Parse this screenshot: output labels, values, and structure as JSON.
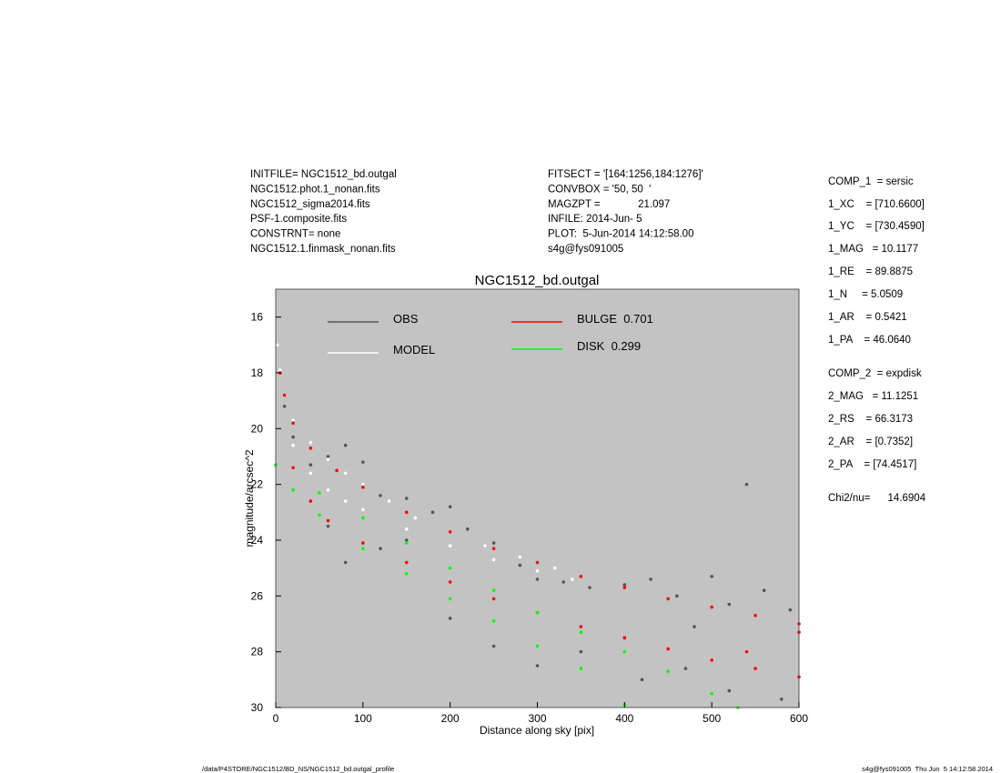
{
  "header": {
    "left": [
      "INITFILE= NGC1512_bd.outgal",
      "NGC1512.phot.1_nonan.fits",
      "NGC1512_sigma2014.fits",
      "PSF-1.composite.fits",
      "CONSTRNT= none",
      "NGC1512.1.finmask_nonan.fits"
    ],
    "middle": [
      "FITSECT = '[164:1256,184:1276]'",
      "CONVBOX = '50, 50  '",
      "MAGZPT =             21.097",
      "INFILE: 2014-Jun- 5",
      "PLOT:  5-Jun-2014 14:12:58.00",
      "s4g@fys091005"
    ],
    "params": [
      "COMP_1  = sersic",
      "1_XC    = [710.6600]",
      "1_YC    = [730.4590]",
      "1_MAG   = 10.1177",
      "1_RE    = 89.8875",
      "1_N     = 5.0509",
      "1_AR    = 0.5421",
      "1_PA    = 46.0640",
      "COMP_2  = expdisk",
      "2_MAG   = 11.1251",
      "2_RS    = 66.3173",
      "2_AR    = [0.7352]",
      "2_PA    = [74.4517]",
      "Chi2/nu=      14.6904"
    ]
  },
  "footer": {
    "left": "/data/P4STORE/NGC1512/BD_NS/NGC1512_bd.outgal_profile",
    "right": "s4g@fys091005  Thu Jun  5 14:12:58 2014"
  },
  "chart_data": {
    "type": "scatter",
    "title": "NGC1512_bd.outgal",
    "x_label": "Distance along sky [pix]",
    "y_label": "magnitude/arcsec^2",
    "xlim": [
      0,
      600
    ],
    "ylim": [
      30,
      15
    ],
    "xticks": [
      0,
      100,
      200,
      300,
      400,
      500,
      600
    ],
    "yticks": [
      16,
      18,
      20,
      22,
      24,
      26,
      28,
      30
    ],
    "background": "#c3c3c3",
    "series": [
      {
        "name": "OBS",
        "color": "#555555",
        "x": [
          2,
          5,
          10,
          20,
          40,
          60,
          80,
          100,
          120,
          150,
          180,
          200,
          220,
          250,
          280,
          300,
          330,
          360,
          400,
          430,
          460,
          500,
          520,
          540,
          560,
          590,
          80,
          150,
          200,
          250,
          300,
          350,
          420,
          470,
          520,
          580,
          60,
          120,
          400,
          480
        ],
        "values": [
          17.0,
          18.0,
          19.2,
          20.3,
          21.3,
          21.0,
          20.6,
          21.2,
          22.4,
          22.5,
          23.0,
          22.8,
          23.6,
          24.1,
          24.9,
          25.4,
          25.5,
          25.7,
          25.6,
          25.4,
          26.0,
          25.3,
          26.3,
          22.0,
          25.8,
          26.5,
          24.8,
          24.0,
          26.8,
          27.8,
          28.5,
          28.0,
          29.0,
          28.6,
          29.4,
          29.7,
          23.5,
          24.3,
          27.5,
          27.1
        ]
      },
      {
        "name": "MODEL",
        "color": "#ffffff",
        "x": [
          2,
          5,
          10,
          20,
          40,
          60,
          80,
          100,
          130,
          160,
          200,
          240,
          280,
          320,
          20,
          40,
          60,
          80,
          100,
          150,
          200,
          250,
          300,
          340
        ],
        "values": [
          17.0,
          17.9,
          18.8,
          19.7,
          20.5,
          21.1,
          21.6,
          22.0,
          22.6,
          23.2,
          23.7,
          24.2,
          24.6,
          25.0,
          20.6,
          21.6,
          22.2,
          22.6,
          22.9,
          23.6,
          24.2,
          24.7,
          25.1,
          25.4
        ]
      },
      {
        "name": "BULGE  0.701",
        "color": "#ff0000",
        "x": [
          5,
          10,
          20,
          40,
          70,
          100,
          150,
          200,
          250,
          300,
          350,
          400,
          450,
          500,
          550,
          600,
          20,
          40,
          60,
          100,
          150,
          200,
          250,
          300,
          350,
          400,
          450,
          500,
          550,
          600,
          540,
          600
        ],
        "values": [
          18.0,
          18.8,
          19.8,
          20.7,
          21.5,
          22.1,
          23.0,
          23.7,
          24.3,
          24.8,
          25.3,
          25.7,
          26.1,
          26.4,
          26.7,
          27.0,
          21.4,
          22.6,
          23.3,
          24.1,
          24.8,
          25.5,
          26.1,
          26.6,
          27.1,
          27.5,
          27.9,
          28.3,
          28.6,
          28.9,
          28.0,
          27.3
        ]
      },
      {
        "name": "DISK  0.299",
        "color": "#00ff00",
        "x": [
          0,
          50,
          100,
          150,
          200,
          250,
          300,
          350,
          400,
          450,
          500,
          530,
          20,
          50,
          100,
          150,
          200,
          250,
          300,
          350,
          400
        ],
        "values": [
          21.3,
          22.3,
          23.2,
          24.1,
          25.0,
          25.8,
          26.6,
          27.3,
          28.0,
          28.7,
          29.5,
          30.0,
          22.2,
          23.1,
          24.3,
          25.2,
          26.1,
          26.9,
          27.8,
          28.6,
          29.9
        ]
      }
    ]
  }
}
